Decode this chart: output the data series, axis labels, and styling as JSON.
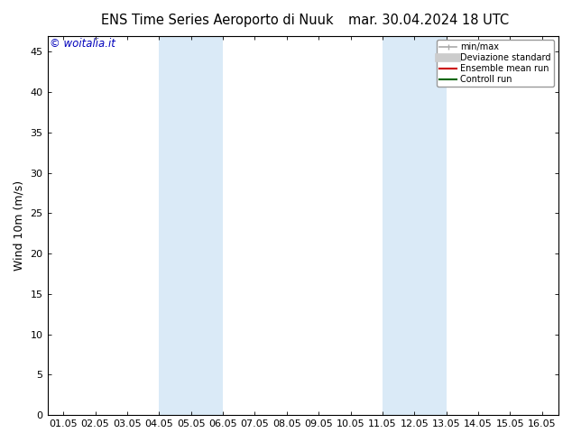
{
  "title": "ENS Time Series Aeroporto di Nuuk",
  "title_date": "mar. 30.04.2024 18 UTC",
  "ylabel": "Wind 10m (m/s)",
  "watermark": "© woitalia.it",
  "background_color": "#ffffff",
  "plot_bg_color": "#ffffff",
  "x_tick_labels": [
    "01.05",
    "02.05",
    "03.05",
    "04.05",
    "05.05",
    "06.05",
    "07.05",
    "08.05",
    "09.05",
    "10.05",
    "11.05",
    "12.05",
    "13.05",
    "14.05",
    "15.05",
    "16.05"
  ],
  "x_ticks": [
    0,
    1,
    2,
    3,
    4,
    5,
    6,
    7,
    8,
    9,
    10,
    11,
    12,
    13,
    14,
    15
  ],
  "ylim": [
    0,
    47
  ],
  "yticks": [
    0,
    5,
    10,
    15,
    20,
    25,
    30,
    35,
    40,
    45
  ],
  "shaded_regions": [
    {
      "x_start": 3,
      "x_end": 5,
      "color": "#daeaf7",
      "alpha": 1.0
    },
    {
      "x_start": 10,
      "x_end": 12,
      "color": "#daeaf7",
      "alpha": 1.0
    }
  ],
  "legend_items": [
    {
      "label": "min/max",
      "color": "#aaaaaa",
      "lw": 1.2
    },
    {
      "label": "Deviazione standard",
      "color": "#cccccc",
      "lw": 7
    },
    {
      "label": "Ensemble mean run",
      "color": "#cc0000",
      "lw": 1.5
    },
    {
      "label": "Controll run",
      "color": "#006600",
      "lw": 1.5
    }
  ],
  "title_fontsize": 10.5,
  "label_fontsize": 9,
  "tick_fontsize": 8,
  "watermark_color": "#0000bb",
  "border_color": "#000000",
  "xlim": [
    -0.5,
    15.5
  ]
}
